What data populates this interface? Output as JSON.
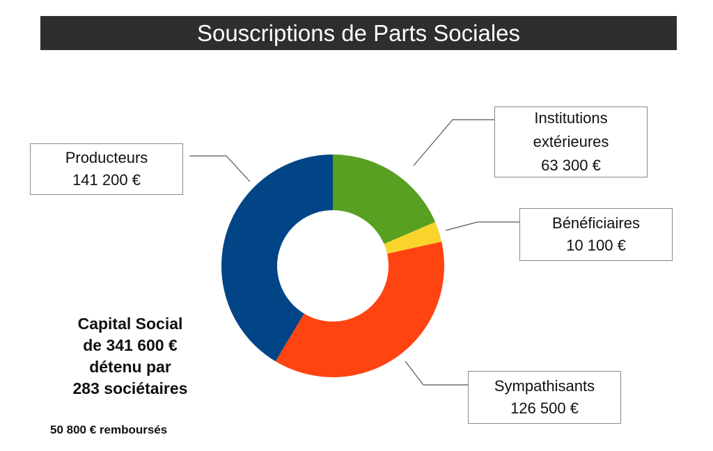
{
  "title": "Souscriptions de Parts Sociales",
  "chart_data": {
    "type": "pie",
    "variant": "donut",
    "title": "Souscriptions de Parts Sociales",
    "categories": [
      "Institutions extérieures",
      "Bénéficiaires",
      "Sympathisants",
      "Producteurs"
    ],
    "values": [
      63300,
      10100,
      126500,
      141200
    ],
    "colors": [
      "#58a021",
      "#f8d42c",
      "#ff4412",
      "#014586"
    ],
    "legend": "callout labels",
    "labels": [
      {
        "lines": [
          "Institutions",
          "extérieures",
          "63 300 €"
        ]
      },
      {
        "lines": [
          "Bénéficiaires",
          "10 100 €"
        ]
      },
      {
        "lines": [
          "Sympathisants",
          "126 500 €"
        ]
      },
      {
        "lines": [
          "Producteurs",
          "141 200 €"
        ]
      }
    ]
  },
  "summary": {
    "lines": [
      "Capital Social",
      "de 341 600 €",
      "détenu par",
      "283 sociétaires"
    ],
    "rembourses": "50 800 € remboursés"
  }
}
